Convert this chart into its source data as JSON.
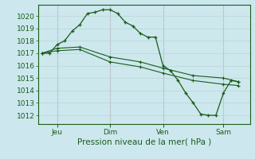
{
  "xlabel_bottom": "Pression niveau de la mer( hPa )",
  "background_color": "#cce8ee",
  "grid_major_color": "#b8d4d4",
  "grid_minor_color": "#d4e8e8",
  "vline_color": "#c8a8b8",
  "line_color": "#1a5c1a",
  "yticks": [
    1012,
    1013,
    1014,
    1015,
    1016,
    1017,
    1018,
    1019,
    1020
  ],
  "ylim": [
    1011.3,
    1020.9
  ],
  "xlim": [
    -0.5,
    27.5
  ],
  "xtick_positions": [
    2,
    9,
    16,
    24
  ],
  "xtick_labels": [
    "Jeu",
    "Dim",
    "Ven",
    "Sam"
  ],
  "vline_positions": [
    2,
    9,
    16,
    24
  ],
  "series1_x": [
    0,
    1,
    2,
    3,
    4,
    5,
    6,
    7,
    8,
    9,
    10,
    11,
    12,
    13,
    14,
    15,
    16,
    17,
    18,
    19,
    20,
    21,
    22,
    23,
    24,
    25,
    26
  ],
  "series1_y": [
    1017.0,
    1017.0,
    1017.7,
    1018.0,
    1018.8,
    1019.3,
    1020.2,
    1020.3,
    1020.5,
    1020.5,
    1020.2,
    1019.5,
    1019.2,
    1018.6,
    1018.3,
    1018.3,
    1016.0,
    1015.6,
    1014.8,
    1013.8,
    1013.0,
    1012.1,
    1012.0,
    1012.0,
    1013.8,
    1014.8,
    1014.7
  ],
  "series2_x": [
    0,
    2,
    5,
    9,
    13,
    16,
    20,
    24,
    26
  ],
  "series2_y": [
    1017.0,
    1017.4,
    1017.5,
    1016.7,
    1016.3,
    1015.8,
    1015.2,
    1015.0,
    1014.7
  ],
  "series3_x": [
    0,
    2,
    5,
    9,
    13,
    16,
    20,
    24,
    26
  ],
  "series3_y": [
    1017.0,
    1017.2,
    1017.3,
    1016.3,
    1015.9,
    1015.4,
    1014.8,
    1014.5,
    1014.4
  ]
}
